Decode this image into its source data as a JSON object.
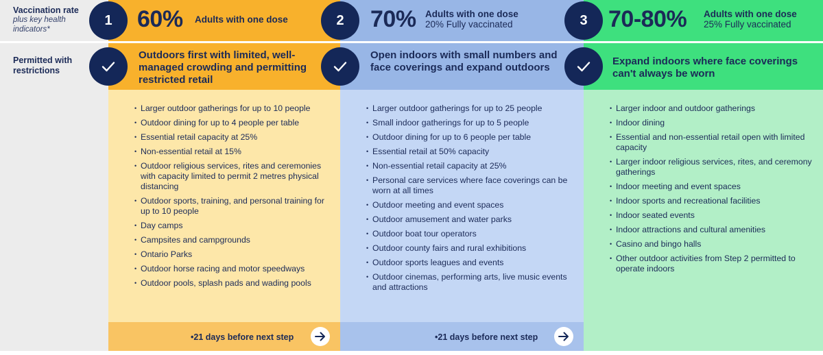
{
  "rail": {
    "vaccination_label": "Vaccination rate",
    "vaccination_sub": "plus key health indicators*",
    "permitted_label": "Permitted with restrictions"
  },
  "steps": [
    {
      "number": "1",
      "percent": "60%",
      "dose_line1": "Adults with one dose",
      "dose_line2": "",
      "title": "Outdoors first with limited, well-managed crowding and permitting restricted retail",
      "items": [
        "Larger outdoor gatherings for up to 10 people",
        "Outdoor dining for up to 4 people per table",
        "Essential retail capacity at 25%",
        "Non-essential retail at 15%",
        "Outdoor religious services, rites and ceremonies with capacity limited to permit 2 metres physical distancing",
        "Outdoor sports, training, and personal training for up to 10 people",
        "Day camps",
        "Campsites and campgrounds",
        "Ontario Parks",
        "Outdoor horse racing and motor speedways",
        "Outdoor pools, splash pads and wading pools"
      ],
      "footer": "•21 days before next step"
    },
    {
      "number": "2",
      "percent": "70%",
      "dose_line1": "Adults with one dose",
      "dose_line2": "20% Fully vaccinated",
      "title": "Open indoors with small numbers and face coverings and expand outdoors",
      "items": [
        "Larger outdoor gatherings for up to 25 people",
        "Small indoor gatherings for up to 5 people",
        "Outdoor dining for up to 6 people per table",
        "Essential retail at 50% capacity",
        "Non-essential retail capacity at 25%",
        "Personal care services where face coverings can be worn at all times",
        "Outdoor meeting and event spaces",
        "Outdoor amusement and water parks",
        "Outdoor boat tour operators",
        "Outdoor county fairs and rural exhibitions",
        "Outdoor sports leagues and events",
        "Outdoor cinemas, performing arts, live music events and attractions"
      ],
      "footer": "•21 days before next step"
    },
    {
      "number": "3",
      "percent": "70-80%",
      "dose_line1": "Adults with one dose",
      "dose_line2": "25% Fully vaccinated",
      "title": "Expand indoors where face coverings can't always be worn",
      "items": [
        "Larger indoor and outdoor gatherings",
        "Indoor dining",
        "Essential and non-essential retail open with limited capacity",
        "Larger indoor religious services, rites, and ceremony gatherings",
        "Indoor meeting and event spaces",
        "Indoor sports and recreational facilities",
        "Indoor seated events",
        "Indoor attractions and cultural amenities",
        "Casino and bingo halls",
        "Other outdoor activities from Step 2 permitted to operate indoors"
      ]
    }
  ],
  "icons": {
    "check": "check-icon",
    "arrow": "arrow-right-icon"
  },
  "colors": {
    "navy": "#142758",
    "step1": "#f8b12c",
    "step2": "#98b6e6",
    "step3": "#3ee07e"
  }
}
